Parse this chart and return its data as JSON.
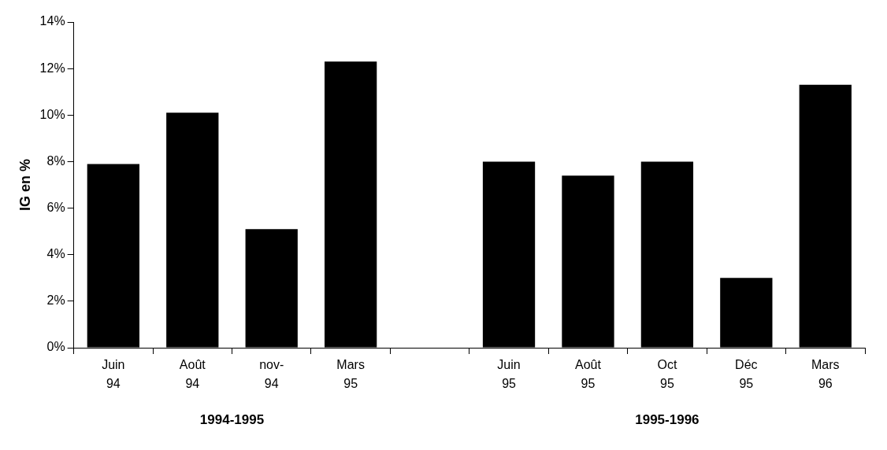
{
  "chart_data": {
    "type": "bar",
    "ylabel": "IG en %",
    "categories": [
      "Juin\n94",
      "Août\n94",
      "nov-\n94",
      "Mars\n95",
      null,
      "Juin\n95",
      "Août\n95",
      "Oct\n95",
      "Déc\n95",
      "Mars\n96"
    ],
    "values": [
      7.9,
      10.1,
      5.1,
      12.3,
      null,
      8.0,
      7.4,
      8.0,
      3.0,
      11.3
    ],
    "color": "#000000",
    "ylim": [
      0,
      14
    ],
    "yticks": [
      {
        "value": 0,
        "label": "0%"
      },
      {
        "value": 2,
        "label": "2%"
      },
      {
        "value": 4,
        "label": "4%"
      },
      {
        "value": 6,
        "label": "6%"
      },
      {
        "value": 8,
        "label": "8%"
      },
      {
        "value": 10,
        "label": "10%"
      },
      {
        "value": 12,
        "label": "12%"
      },
      {
        "value": 14,
        "label": "14%"
      }
    ],
    "annotations": [
      "1994-1995",
      "1995-1996"
    ],
    "grid": false,
    "legend": false
  }
}
